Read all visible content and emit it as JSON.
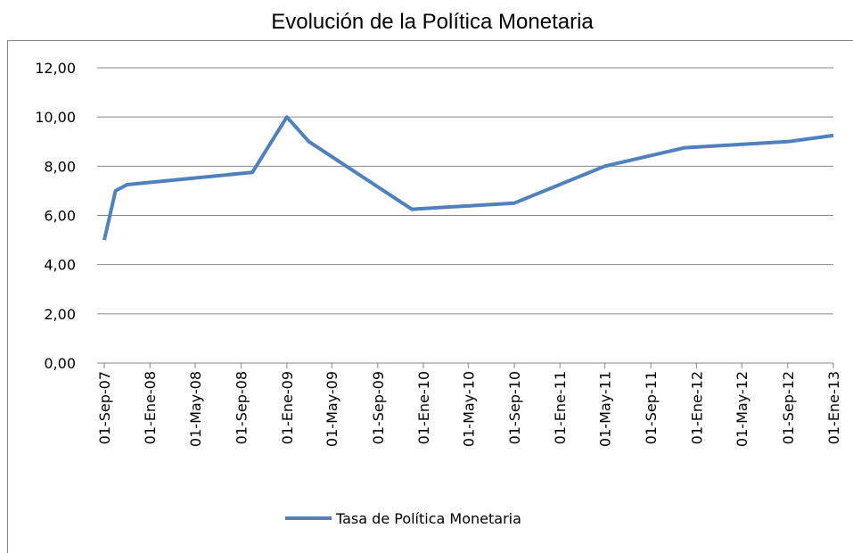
{
  "chart_data": {
    "type": "line",
    "title": "Evolución de la Política Monetaria",
    "x": [
      "2007-09-01",
      "2007-10-01",
      "2007-11-01",
      "2008-10-01",
      "2009-01-01",
      "2009-03-01",
      "2009-12-01",
      "2010-09-01",
      "2011-05-01",
      "2011-12-01",
      "2012-09-01",
      "2013-01-01"
    ],
    "series": [
      {
        "name": "Tasa de Política Monetaria",
        "color": "#4f81bd",
        "values": [
          5.0,
          7.0,
          7.25,
          7.75,
          10.0,
          9.0,
          6.25,
          6.5,
          8.0,
          8.75,
          9.0,
          9.25
        ]
      }
    ],
    "xlim": [
      "2007-09-01",
      "2013-01-01"
    ],
    "xticks": [
      {
        "value": "2007-09-01",
        "label": "01-Sep-07"
      },
      {
        "value": "2008-01-01",
        "label": "01-Ene-08"
      },
      {
        "value": "2008-05-01",
        "label": "01-May-08"
      },
      {
        "value": "2008-09-01",
        "label": "01-Sep-08"
      },
      {
        "value": "2009-01-01",
        "label": "01-Ene-09"
      },
      {
        "value": "2009-05-01",
        "label": "01-May-09"
      },
      {
        "value": "2009-09-01",
        "label": "01-Sep-09"
      },
      {
        "value": "2010-01-01",
        "label": "01-Ene-10"
      },
      {
        "value": "2010-05-01",
        "label": "01-May-10"
      },
      {
        "value": "2010-09-01",
        "label": "01-Sep-10"
      },
      {
        "value": "2011-01-01",
        "label": "01-Ene-11"
      },
      {
        "value": "2011-05-01",
        "label": "01-May-11"
      },
      {
        "value": "2011-09-01",
        "label": "01-Sep-11"
      },
      {
        "value": "2012-01-01",
        "label": "01-Ene-12"
      },
      {
        "value": "2012-05-01",
        "label": "01-May-12"
      },
      {
        "value": "2012-09-01",
        "label": "01-Sep-12"
      },
      {
        "value": "2013-01-01",
        "label": "01-Ene-13"
      }
    ],
    "ylim": [
      0,
      12
    ],
    "yticks": [
      {
        "value": 0,
        "label": "0,00"
      },
      {
        "value": 2,
        "label": "2,00"
      },
      {
        "value": 4,
        "label": "4,00"
      },
      {
        "value": 6,
        "label": "6,00"
      },
      {
        "value": 8,
        "label": "8,00"
      },
      {
        "value": 10,
        "label": "10,00"
      },
      {
        "value": 12,
        "label": "12,00"
      }
    ],
    "grid": true,
    "legend": "bottom"
  }
}
